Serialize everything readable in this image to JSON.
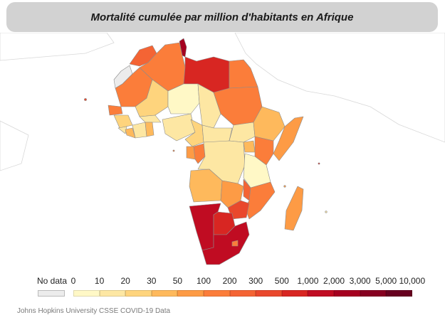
{
  "title": "Mortalité cumulée par million d'habitants en Afrique",
  "legend": {
    "no_data_label": "No data",
    "no_data_color": "#ececec",
    "bins": [
      {
        "label": "0",
        "color": "#fff8c6"
      },
      {
        "label": "10",
        "color": "#fde7a3"
      },
      {
        "label": "20",
        "color": "#fed47d"
      },
      {
        "label": "30",
        "color": "#feb95c"
      },
      {
        "label": "50",
        "color": "#fd9b45"
      },
      {
        "label": "100",
        "color": "#fb7d3a"
      },
      {
        "label": "200",
        "color": "#f46434"
      },
      {
        "label": "300",
        "color": "#e9482c"
      },
      {
        "label": "500",
        "color": "#d82622"
      },
      {
        "label": "1,000",
        "color": "#c00c22"
      },
      {
        "label": "2,000",
        "color": "#a5001f"
      },
      {
        "label": "3,000",
        "color": "#860020"
      },
      {
        "label": "5,000",
        "color": "#67001f"
      },
      {
        "label": "10,000",
        "color": ""
      }
    ]
  },
  "source": "Johns Hopkins University CSSE COVID-19 Data"
}
